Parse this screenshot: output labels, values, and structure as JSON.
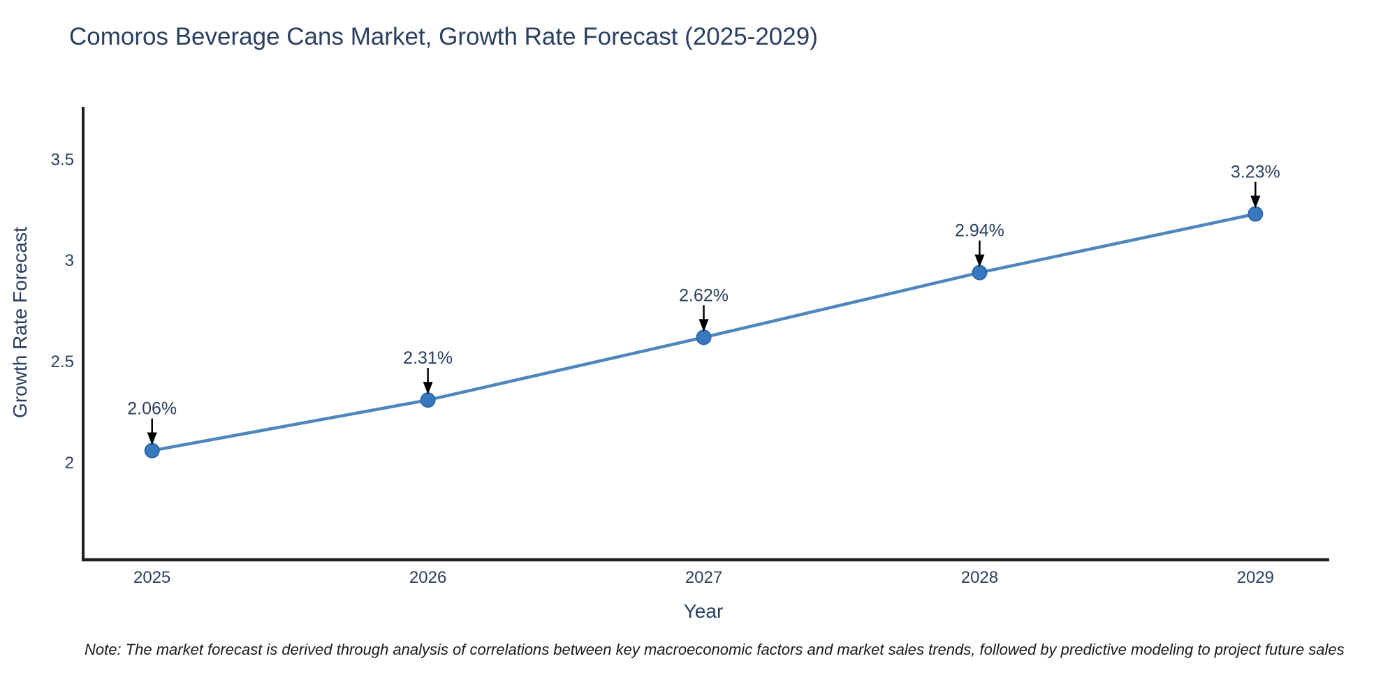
{
  "title": "Comoros Beverage Cans Market, Growth Rate Forecast (2025-2029)",
  "note": "Note: The market forecast is derived through analysis of correlations between key macroeconomic factors and market sales trends, followed by predictive modeling to project future sales",
  "chart_data": {
    "type": "line",
    "title": "Comoros Beverage Cans Market, Growth Rate Forecast (2025-2029)",
    "xlabel": "Year",
    "ylabel": "Growth Rate Forecast",
    "x": [
      2025,
      2026,
      2027,
      2028,
      2029
    ],
    "series": [
      {
        "name": "Growth Rate Forecast",
        "values": [
          2.06,
          2.31,
          2.62,
          2.94,
          3.23
        ]
      }
    ],
    "point_labels": [
      "2.06%",
      "2.31%",
      "2.62%",
      "2.94%",
      "3.23%"
    ],
    "xtick_labels": [
      "2025",
      "2026",
      "2027",
      "2028",
      "2029"
    ],
    "yticks": [
      2,
      2.5,
      3,
      3.5
    ],
    "ytick_labels": [
      "2",
      "2.5",
      "3",
      "3.5"
    ],
    "xlim": [
      2024.75,
      2029.26
    ],
    "ylim": [
      1.52,
      3.76
    ],
    "grid": false,
    "legend": "none",
    "colors": {
      "line": "#4e87bb",
      "marker_fill": "#3779bf",
      "marker_edge": "#2e68a5",
      "axis": "#1f1f1f",
      "text": "#2a3f5f",
      "arrow": "#000000",
      "background": "#ffffff"
    }
  }
}
